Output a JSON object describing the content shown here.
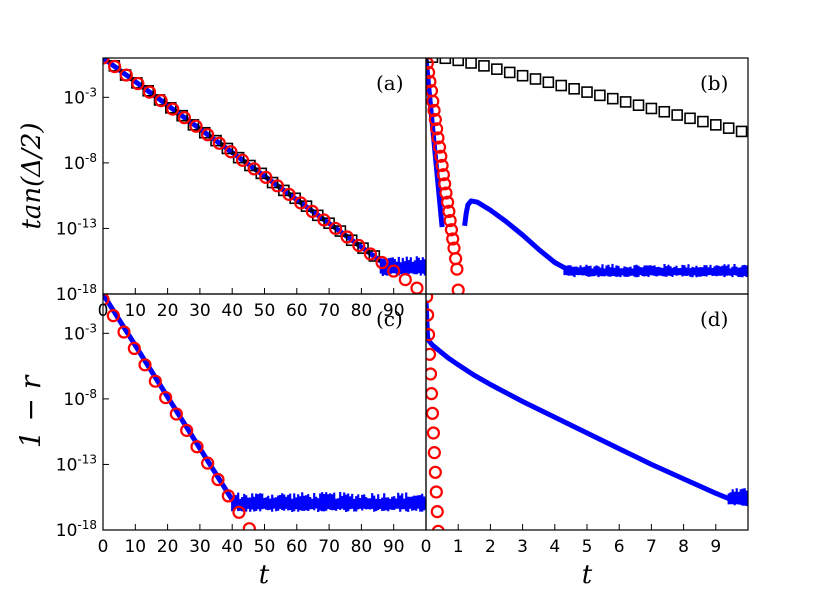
{
  "figure": {
    "ylabel_top": "tan(Δ/2)",
    "ylabel_bottom": "1 − r",
    "xlabel_left": "t",
    "xlabel_right": "t"
  },
  "colors": {
    "numeric": "#0000ff",
    "theory_circle": "#ff0000",
    "theory_square": "#000000",
    "axes": "#000000"
  },
  "chart_data": [
    {
      "type": "scatter",
      "panel": "a",
      "panel_label": "(a)",
      "y_scale": "log10",
      "xlim": [
        0,
        100
      ],
      "ylim_exponent": [
        -18,
        0
      ],
      "x_ticks": [
        0,
        10,
        20,
        30,
        40,
        50,
        60,
        70,
        80,
        90
      ],
      "y_ticks": [
        {
          "exp": -3,
          "label": "10-3"
        },
        {
          "exp": -8,
          "label": "10-8"
        },
        {
          "exp": -13,
          "label": "10-13"
        },
        {
          "exp": -18,
          "label": "10-18"
        }
      ],
      "series": [
        {
          "kind": "line",
          "x": [
            0,
            86
          ],
          "log10_y": [
            0,
            -15.5
          ],
          "noise_floor": {
            "x_from": 86,
            "x_to": 100,
            "log10_y_center": -16,
            "log10_y_spread": 0.9
          }
        },
        {
          "kind": "square",
          "x": [
            3.5,
            7,
            10.5,
            14,
            17.5,
            21,
            24.5,
            28,
            31.5,
            35,
            38.5,
            42,
            45.5,
            49,
            52.5,
            56,
            59.5,
            63,
            66.5,
            70,
            73.5,
            77,
            80.5,
            84
          ],
          "log10_y": [
            -0.6,
            -1.3,
            -1.9,
            -2.5,
            -3.2,
            -3.8,
            -4.4,
            -5.1,
            -5.7,
            -6.3,
            -6.9,
            -7.6,
            -8.2,
            -8.8,
            -9.5,
            -10.1,
            -10.7,
            -11.3,
            -12.0,
            -12.6,
            -13.2,
            -13.9,
            -14.5,
            -15.1
          ]
        },
        {
          "kind": "circle",
          "x": [
            0,
            3.6,
            7.2,
            10.8,
            14.4,
            18,
            21.6,
            25.2,
            28.8,
            32.4,
            36,
            39.6,
            43.2,
            46.8,
            50.4,
            54,
            57.6,
            61.2,
            64.8,
            68.4,
            72,
            75.6,
            79.2,
            82.8,
            86.4,
            90,
            93.6,
            97.2
          ],
          "log10_y": [
            0,
            -0.65,
            -1.3,
            -1.95,
            -2.6,
            -3.25,
            -3.9,
            -4.55,
            -5.2,
            -5.85,
            -6.5,
            -7.15,
            -7.8,
            -8.45,
            -9.1,
            -9.75,
            -10.4,
            -11.05,
            -11.7,
            -12.35,
            -13.0,
            -13.65,
            -14.3,
            -14.95,
            -15.6,
            -16.25,
            -16.9,
            -17.55
          ]
        }
      ]
    },
    {
      "type": "scatter",
      "panel": "b",
      "panel_label": "(b)",
      "y_scale": "log10",
      "xlim": [
        0,
        10
      ],
      "ylim_exponent": [
        -18,
        0
      ],
      "series": [
        {
          "kind": "line",
          "x": [
            0,
            0.5
          ],
          "log10_y": [
            0,
            -12.9
          ]
        },
        {
          "kind": "line",
          "x": [
            1.2,
            1.25,
            1.3,
            1.4,
            1.6,
            2.0,
            2.5,
            3.0,
            3.5,
            4.0,
            4.3
          ],
          "log10_y": [
            -12.8,
            -11.8,
            -11.2,
            -10.9,
            -11.0,
            -11.6,
            -12.5,
            -13.5,
            -14.6,
            -15.6,
            -16.0
          ],
          "noise_floor": {
            "x_from": 4.3,
            "x_to": 10,
            "log10_y_center": -16.3,
            "log10_y_spread": 0.6
          }
        },
        {
          "kind": "square",
          "x": [
            0.2,
            0.6,
            1.0,
            1.4,
            1.8,
            2.2,
            2.6,
            3.0,
            3.4,
            3.8,
            4.2,
            4.6,
            5.0,
            5.4,
            5.8,
            6.2,
            6.6,
            7.0,
            7.4,
            7.8,
            8.2,
            8.6,
            9.0,
            9.4,
            9.8
          ],
          "log10_y": [
            0.06,
            -0.02,
            -0.18,
            -0.38,
            -0.6,
            -0.85,
            -1.1,
            -1.35,
            -1.6,
            -1.85,
            -2.1,
            -2.35,
            -2.6,
            -2.85,
            -3.1,
            -3.35,
            -3.6,
            -3.85,
            -4.1,
            -4.35,
            -4.6,
            -4.85,
            -5.1,
            -5.35,
            -5.6
          ]
        },
        {
          "kind": "circle",
          "x": [
            0.04,
            0.08,
            0.12,
            0.17,
            0.21,
            0.25,
            0.29,
            0.33,
            0.37,
            0.42,
            0.46,
            0.5,
            0.54,
            0.58,
            0.62,
            0.67,
            0.71,
            0.75,
            0.79,
            0.83,
            0.87,
            0.92,
            0.96,
            1.0
          ],
          "log10_y": [
            -0.4,
            -1.1,
            -1.8,
            -2.5,
            -3.3,
            -4.0,
            -4.7,
            -5.4,
            -6.1,
            -6.8,
            -7.5,
            -8.2,
            -8.9,
            -9.6,
            -10.3,
            -11.0,
            -11.7,
            -12.4,
            -13.1,
            -13.8,
            -14.5,
            -15.3,
            -16.1,
            -17.7
          ]
        }
      ]
    },
    {
      "type": "scatter",
      "panel": "c",
      "panel_label": "(c)",
      "y_scale": "log10",
      "xlim": [
        0,
        100
      ],
      "ylim_exponent": [
        -18,
        0
      ],
      "x_ticks": [
        0,
        10,
        20,
        30,
        40,
        50,
        60,
        70,
        80,
        90
      ],
      "y_ticks": [
        {
          "exp": -3,
          "label": "10-3"
        },
        {
          "exp": -8,
          "label": "10-8"
        },
        {
          "exp": -13,
          "label": "10-13"
        },
        {
          "exp": -18,
          "label": "10-18"
        }
      ],
      "series": [
        {
          "kind": "line",
          "x": [
            0,
            40
          ],
          "log10_y": [
            0,
            -15.7
          ],
          "noise_floor": {
            "x_from": 40,
            "x_to": 100,
            "log10_y_center": -16,
            "log10_y_spread": 0.9
          }
        },
        {
          "kind": "circle",
          "x": [
            0,
            3.2,
            6.5,
            9.7,
            13,
            16.2,
            19.4,
            22.7,
            25.9,
            29.1,
            32.4,
            35.6,
            38.8,
            42.1,
            45.3,
            48.5,
            51.8,
            55
          ],
          "log10_y": [
            -0.4,
            -1.65,
            -2.9,
            -4.15,
            -5.4,
            -6.65,
            -7.9,
            -9.15,
            -10.4,
            -11.65,
            -12.9,
            -14.15,
            -15.4,
            -16.65,
            -17.9,
            -19.15,
            -20.4,
            -21.6
          ]
        }
      ]
    },
    {
      "type": "scatter",
      "panel": "d",
      "panel_label": "(d)",
      "y_scale": "log10",
      "xlim": [
        0,
        10
      ],
      "ylim_exponent": [
        -18,
        0
      ],
      "x_ticks": [
        0,
        1,
        2,
        3,
        4,
        5,
        6,
        7,
        8,
        9
      ],
      "series": [
        {
          "kind": "line",
          "x": [
            0,
            0.05,
            0.1,
            0.2,
            0.4,
            0.7,
            1.0,
            1.5,
            2.0,
            3.0,
            4.0,
            5.0,
            6.0,
            7.0,
            8.0,
            9.0,
            9.6,
            10.0
          ],
          "log10_y": [
            -0.5,
            -3.3,
            -3.6,
            -3.9,
            -4.3,
            -4.9,
            -5.4,
            -6.2,
            -6.9,
            -8.2,
            -9.4,
            -10.6,
            -11.8,
            -13.0,
            -14.1,
            -15.2,
            -15.8,
            -16.0
          ],
          "noise_floor": {
            "x_from": 9.4,
            "x_to": 10,
            "log10_y_center": -15.6,
            "log10_y_spread": 0.8
          }
        },
        {
          "kind": "circle",
          "x": [
            0.02,
            0.05,
            0.08,
            0.11,
            0.14,
            0.17,
            0.2,
            0.23,
            0.26,
            0.29,
            0.32,
            0.35,
            0.38
          ],
          "log10_y": [
            -0.2,
            -1.6,
            -3.1,
            -4.6,
            -6.1,
            -7.6,
            -9.1,
            -10.6,
            -12.1,
            -13.6,
            -15.1,
            -16.6,
            -18.1
          ]
        }
      ]
    }
  ]
}
